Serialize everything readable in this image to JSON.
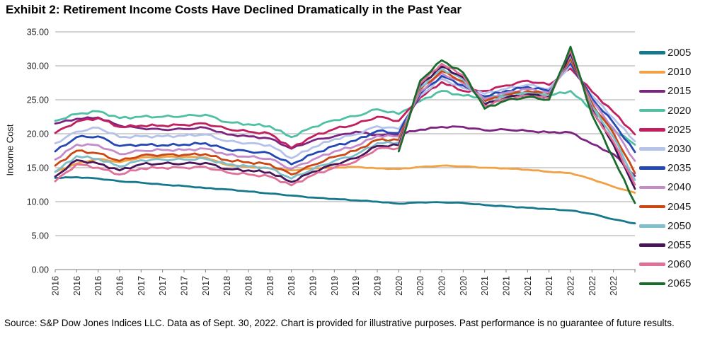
{
  "title": "Exhibit 2: Retirement Income Costs Have Declined Dramatically in the Past Year",
  "source_note": "Source: S&P Dow Jones Indices LLC. Data as of Sept. 30, 2022. Chart is provided for illustrative purposes. Past performance is no guarantee of future results.",
  "chart_data": {
    "type": "line",
    "title": "Exhibit 2: Retirement Income Costs Have Declined Dramatically in the Past Year",
    "xlabel": "",
    "ylabel": "Income Cost",
    "ylim": [
      0,
      35
    ],
    "y_tick_step": 5,
    "y_tick_labels": [
      "0.00",
      "5.00",
      "10.00",
      "15.00",
      "20.00",
      "25.00",
      "30.00",
      "35.00"
    ],
    "x_tick_labels": [
      "2016",
      "2016",
      "2016",
      "2016",
      "2017",
      "2017",
      "2017",
      "2017",
      "2018",
      "2018",
      "2018",
      "2018",
      "2019",
      "2019",
      "2019",
      "2019",
      "2020",
      "2020",
      "2020",
      "2020",
      "2021",
      "2021",
      "2021",
      "2021",
      "2022",
      "2022",
      "2022"
    ],
    "x": [
      "2016 Q1",
      "2016 Q2",
      "2016 Q3",
      "2016 Q4",
      "2017 Q1",
      "2017 Q2",
      "2017 Q3",
      "2017 Q4",
      "2018 Q1",
      "2018 Q2",
      "2018 Q3",
      "2018 Q4",
      "2019 Q1",
      "2019 Q2",
      "2019 Q3",
      "2019 Q4",
      "2020 Q1",
      "2020 Q2",
      "2020 Q3",
      "2020 Q4",
      "2021 Q1",
      "2021 Q2",
      "2021 Q3",
      "2021 Q4",
      "2022 Q1",
      "2022 Q2",
      "2022 Q3",
      "2022 Sep 30"
    ],
    "grid": "horizontal",
    "gridline_color": "#A6A6A6",
    "axis_color": "#7F7F7F",
    "background": "#FFFFFF",
    "legend_position": "right",
    "series": [
      {
        "name": "2005",
        "color": "#15788C",
        "values": [
          13.5,
          13.6,
          13.4,
          13.0,
          12.8,
          12.5,
          12.3,
          12.0,
          11.8,
          11.5,
          11.2,
          10.9,
          10.6,
          10.4,
          10.2,
          10.0,
          9.7,
          9.9,
          9.9,
          9.8,
          9.5,
          9.3,
          9.1,
          8.9,
          8.7,
          8.2,
          7.4,
          6.8
        ]
      },
      {
        "name": "2010",
        "color": "#F0A245",
        "values": [
          14.4,
          15.6,
          16.3,
          15.8,
          16.5,
          16.6,
          16.6,
          16.5,
          15.4,
          15.1,
          14.9,
          14.6,
          14.9,
          15.0,
          15.1,
          14.9,
          14.8,
          15.1,
          15.3,
          15.2,
          15.0,
          14.9,
          14.7,
          14.4,
          14.2,
          13.3,
          12.2,
          11.3
        ]
      },
      {
        "name": "2015",
        "color": "#7D2482",
        "values": [
          21.5,
          22.2,
          22.4,
          21.2,
          20.8,
          20.6,
          20.7,
          20.9,
          19.9,
          19.6,
          19.3,
          17.8,
          19.0,
          19.6,
          20.3,
          19.8,
          19.9,
          20.6,
          21.0,
          21.0,
          20.5,
          20.6,
          20.4,
          20.2,
          20.2,
          18.5,
          17.0,
          13.8
        ]
      },
      {
        "name": "2020",
        "color": "#4FC0A3",
        "values": [
          21.9,
          22.9,
          23.3,
          22.3,
          22.5,
          22.5,
          22.6,
          22.8,
          21.7,
          21.4,
          21.1,
          19.5,
          21.0,
          22.0,
          22.6,
          23.6,
          22.9,
          24.8,
          26.3,
          25.6,
          25.3,
          25.8,
          26.0,
          25.6,
          26.3,
          23.5,
          20.6,
          18.4
        ]
      },
      {
        "name": "2025",
        "color": "#C21F5E",
        "values": [
          20.1,
          21.8,
          22.3,
          21.0,
          21.2,
          21.2,
          21.3,
          21.5,
          20.7,
          20.3,
          20.0,
          17.9,
          19.6,
          20.7,
          21.4,
          22.5,
          21.9,
          25.3,
          27.6,
          26.3,
          26.3,
          27.1,
          27.8,
          27.2,
          29.6,
          26.2,
          23.2,
          19.9
        ]
      },
      {
        "name": "2030",
        "color": "#B5C2E9",
        "values": [
          18.6,
          20.3,
          20.9,
          19.5,
          19.6,
          19.6,
          19.7,
          19.9,
          18.9,
          18.6,
          18.3,
          16.4,
          18.0,
          19.2,
          19.9,
          21.1,
          20.7,
          25.6,
          28.1,
          26.7,
          25.9,
          26.6,
          27.2,
          26.6,
          30.1,
          25.6,
          22.3,
          18.9
        ]
      },
      {
        "name": "2035",
        "color": "#2348B4",
        "values": [
          17.4,
          19.5,
          19.6,
          18.2,
          18.4,
          18.3,
          18.4,
          18.6,
          17.7,
          17.4,
          17.1,
          15.5,
          17.0,
          18.2,
          19.0,
          20.4,
          20.1,
          25.9,
          28.5,
          27.1,
          25.5,
          26.3,
          26.9,
          26.3,
          30.4,
          25.2,
          21.6,
          17.3
        ]
      },
      {
        "name": "2040",
        "color": "#C58BC9",
        "values": [
          16.2,
          18.4,
          18.3,
          17.0,
          17.5,
          17.6,
          17.6,
          17.8,
          16.9,
          16.6,
          16.3,
          14.8,
          16.2,
          17.4,
          18.2,
          19.7,
          19.6,
          26.2,
          28.9,
          27.4,
          25.1,
          26.0,
          26.6,
          26.0,
          30.8,
          24.8,
          20.8,
          16.0
        ]
      },
      {
        "name": "2045",
        "color": "#CB4714",
        "values": [
          15.3,
          17.5,
          17.1,
          16.0,
          16.8,
          16.9,
          16.9,
          17.0,
          16.1,
          15.8,
          15.5,
          14.0,
          15.4,
          16.6,
          17.5,
          19.1,
          19.1,
          26.5,
          29.2,
          27.7,
          24.8,
          25.7,
          26.3,
          25.8,
          31.1,
          24.4,
          20.1,
          14.2
        ]
      },
      {
        "name": "2050",
        "color": "#7FBFCB",
        "values": [
          14.4,
          16.7,
          16.3,
          15.2,
          16.1,
          16.2,
          16.2,
          16.3,
          15.5,
          15.2,
          14.9,
          13.4,
          14.8,
          16.0,
          16.9,
          18.6,
          18.7,
          26.8,
          29.6,
          28.0,
          24.5,
          25.5,
          26.0,
          25.6,
          31.5,
          24.0,
          19.5,
          13.2
        ]
      },
      {
        "name": "2055",
        "color": "#481557",
        "values": [
          13.7,
          16.1,
          15.6,
          14.6,
          15.5,
          15.6,
          15.6,
          15.7,
          14.8,
          14.6,
          14.3,
          12.9,
          14.4,
          15.5,
          16.4,
          18.2,
          18.3,
          27.1,
          29.9,
          28.3,
          24.3,
          25.3,
          25.8,
          25.4,
          31.9,
          23.6,
          18.4,
          11.9
        ]
      },
      {
        "name": "2060",
        "color": "#DF7099",
        "values": [
          13.0,
          15.5,
          15.0,
          14.0,
          14.9,
          15.0,
          15.0,
          15.1,
          14.3,
          14.0,
          13.7,
          12.4,
          13.9,
          15.0,
          15.9,
          17.8,
          17.9,
          27.4,
          30.3,
          28.6,
          24.1,
          25.1,
          25.6,
          25.2,
          32.3,
          23.3,
          18.8,
          12.5
        ]
      },
      {
        "name": "2065",
        "color": "#186C2C",
        "values": [
          null,
          null,
          null,
          null,
          null,
          null,
          null,
          null,
          null,
          null,
          null,
          null,
          null,
          null,
          null,
          null,
          17.4,
          27.8,
          30.8,
          29.0,
          23.7,
          24.9,
          25.4,
          25.0,
          32.8,
          22.8,
          16.4,
          9.8
        ]
      }
    ]
  }
}
